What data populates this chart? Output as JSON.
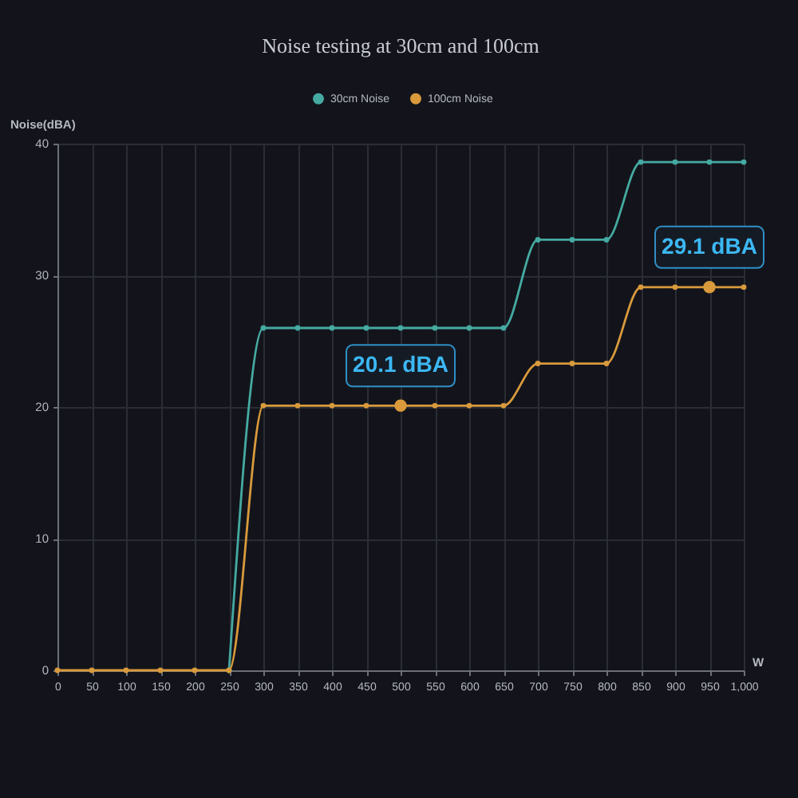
{
  "chart_data": {
    "type": "line",
    "title": "Noise testing at 30cm and 100cm",
    "xlabel": "W",
    "ylabel": "Noise(dBA)",
    "x": [
      0,
      50,
      100,
      150,
      200,
      250,
      300,
      350,
      400,
      450,
      500,
      550,
      600,
      650,
      700,
      750,
      800,
      850,
      900,
      950,
      1000
    ],
    "series": [
      {
        "name": "30cm Noise",
        "color": "#45aaa2",
        "values": [
          null,
          null,
          null,
          null,
          null,
          0,
          26,
          26,
          26,
          26,
          26,
          26,
          26,
          26,
          32.7,
          32.7,
          32.7,
          38.6,
          38.6,
          38.6,
          38.6
        ]
      },
      {
        "name": "100cm Noise",
        "color": "#d99a3c",
        "values": [
          0,
          0,
          0,
          0,
          0,
          0,
          20.1,
          20.1,
          20.1,
          20.1,
          20.1,
          20.1,
          20.1,
          20.1,
          23.3,
          23.3,
          23.3,
          29.1,
          29.1,
          29.1,
          29.1
        ]
      }
    ],
    "annotations": [
      {
        "text": "20.1 dBA",
        "x": 500,
        "y": 20.1
      },
      {
        "text": "29.1 dBA",
        "x": 950,
        "y": 29.1
      }
    ],
    "xlim": [
      0,
      1000
    ],
    "xticks": [
      0,
      50,
      100,
      150,
      200,
      250,
      300,
      350,
      400,
      450,
      500,
      550,
      600,
      650,
      700,
      750,
      800,
      850,
      900,
      950,
      {
        "value": 1000,
        "label": "1,000"
      }
    ],
    "ylim": [
      0,
      40
    ],
    "yticks": [
      0,
      10,
      20,
      30,
      40
    ],
    "grid": true,
    "legend": "top",
    "marker": "circle",
    "line_style": "solid"
  }
}
